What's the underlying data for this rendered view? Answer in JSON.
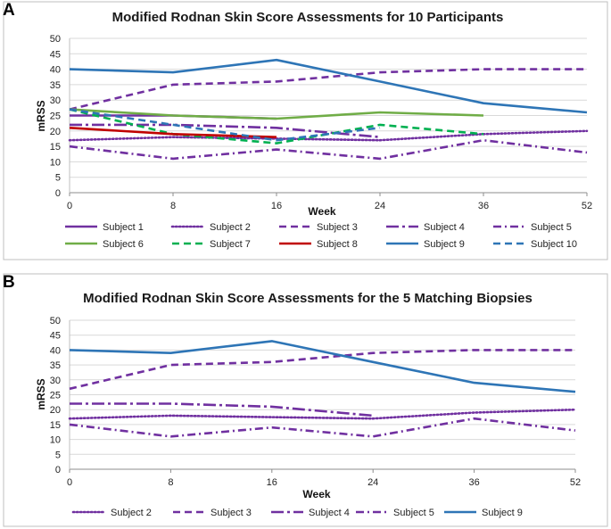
{
  "chart_data": [
    {
      "type": "line",
      "panel_label": "A",
      "title": "Modified Rodnan Skin Score Assessments for 10 Participants",
      "xlabel": "Week",
      "ylabel": "mRSS",
      "x_ticks": [
        0,
        8,
        16,
        24,
        36,
        52
      ],
      "y_ticks": [
        0,
        5,
        10,
        15,
        20,
        25,
        30,
        35,
        40,
        45,
        50
      ],
      "ylim": [
        0,
        50
      ],
      "grid": true,
      "legend_position": "bottom",
      "series": [
        {
          "name": "Subject 1",
          "color": "#7030a0",
          "style": "solid",
          "x": [
            0,
            8,
            16
          ],
          "values": [
            25,
            25,
            24
          ]
        },
        {
          "name": "Subject 2",
          "color": "#7030a0",
          "style": "dot",
          "x": [
            0,
            8,
            16,
            24,
            36,
            52
          ],
          "values": [
            17,
            18,
            17.5,
            17,
            19,
            20
          ]
        },
        {
          "name": "Subject 3",
          "color": "#7030a0",
          "style": "dash",
          "x": [
            0,
            8,
            16,
            24,
            36,
            52
          ],
          "values": [
            27,
            35,
            36,
            39,
            40,
            40
          ]
        },
        {
          "name": "Subject 4",
          "color": "#7030a0",
          "style": "longdashdot",
          "x": [
            0,
            8,
            16,
            24
          ],
          "values": [
            22,
            22,
            21,
            18
          ]
        },
        {
          "name": "Subject 5",
          "color": "#7030a0",
          "style": "dashdot",
          "x": [
            0,
            8,
            16,
            24,
            36,
            52
          ],
          "values": [
            15,
            11,
            14,
            11,
            17,
            13
          ]
        },
        {
          "name": "Subject 6",
          "color": "#70ad47",
          "style": "solid",
          "x": [
            0,
            8,
            16,
            24,
            36
          ],
          "values": [
            27,
            25,
            24,
            26,
            25
          ]
        },
        {
          "name": "Subject 7",
          "color": "#00b050",
          "style": "dash",
          "x": [
            0,
            8,
            16,
            24,
            36
          ],
          "values": [
            27,
            19,
            16,
            22,
            19
          ]
        },
        {
          "name": "Subject 8",
          "color": "#c00000",
          "style": "solid",
          "x": [
            0,
            8,
            16
          ],
          "values": [
            21,
            19,
            18
          ]
        },
        {
          "name": "Subject 9",
          "color": "#2e75b6",
          "style": "solid",
          "x": [
            0,
            8,
            16,
            24,
            36,
            52
          ],
          "values": [
            40,
            39,
            43,
            36,
            29,
            26
          ]
        },
        {
          "name": "Subject 10",
          "color": "#2e75b6",
          "style": "dash",
          "x": [
            0,
            8,
            16,
            24
          ],
          "values": [
            27,
            22,
            17,
            21
          ]
        }
      ]
    },
    {
      "type": "line",
      "panel_label": "B",
      "title": "Modified Rodnan Skin Score Assessments for the 5 Matching Biopsies",
      "xlabel": "Week",
      "ylabel": "mRSS",
      "x_ticks": [
        0,
        8,
        16,
        24,
        36,
        52
      ],
      "y_ticks": [
        0,
        5,
        10,
        15,
        20,
        25,
        30,
        35,
        40,
        45,
        50
      ],
      "ylim": [
        0,
        50
      ],
      "grid": true,
      "legend_position": "bottom",
      "series": [
        {
          "name": "Subject 2",
          "color": "#7030a0",
          "style": "dot",
          "x": [
            0,
            8,
            16,
            24,
            36,
            52
          ],
          "values": [
            17,
            18,
            17.5,
            17,
            19,
            20
          ]
        },
        {
          "name": "Subject 3",
          "color": "#7030a0",
          "style": "dash",
          "x": [
            0,
            8,
            16,
            24,
            36,
            52
          ],
          "values": [
            27,
            35,
            36,
            39,
            40,
            40
          ]
        },
        {
          "name": "Subject 4",
          "color": "#7030a0",
          "style": "longdashdot",
          "x": [
            0,
            8,
            16,
            24
          ],
          "values": [
            22,
            22,
            21,
            18
          ]
        },
        {
          "name": "Subject 5",
          "color": "#7030a0",
          "style": "dashdot",
          "x": [
            0,
            8,
            16,
            24,
            36,
            52
          ],
          "values": [
            15,
            11,
            14,
            11,
            17,
            13
          ]
        },
        {
          "name": "Subject 9",
          "color": "#2e75b6",
          "style": "solid",
          "x": [
            0,
            8,
            16,
            24,
            36,
            52
          ],
          "values": [
            40,
            39,
            43,
            36,
            29,
            26
          ]
        }
      ]
    }
  ]
}
